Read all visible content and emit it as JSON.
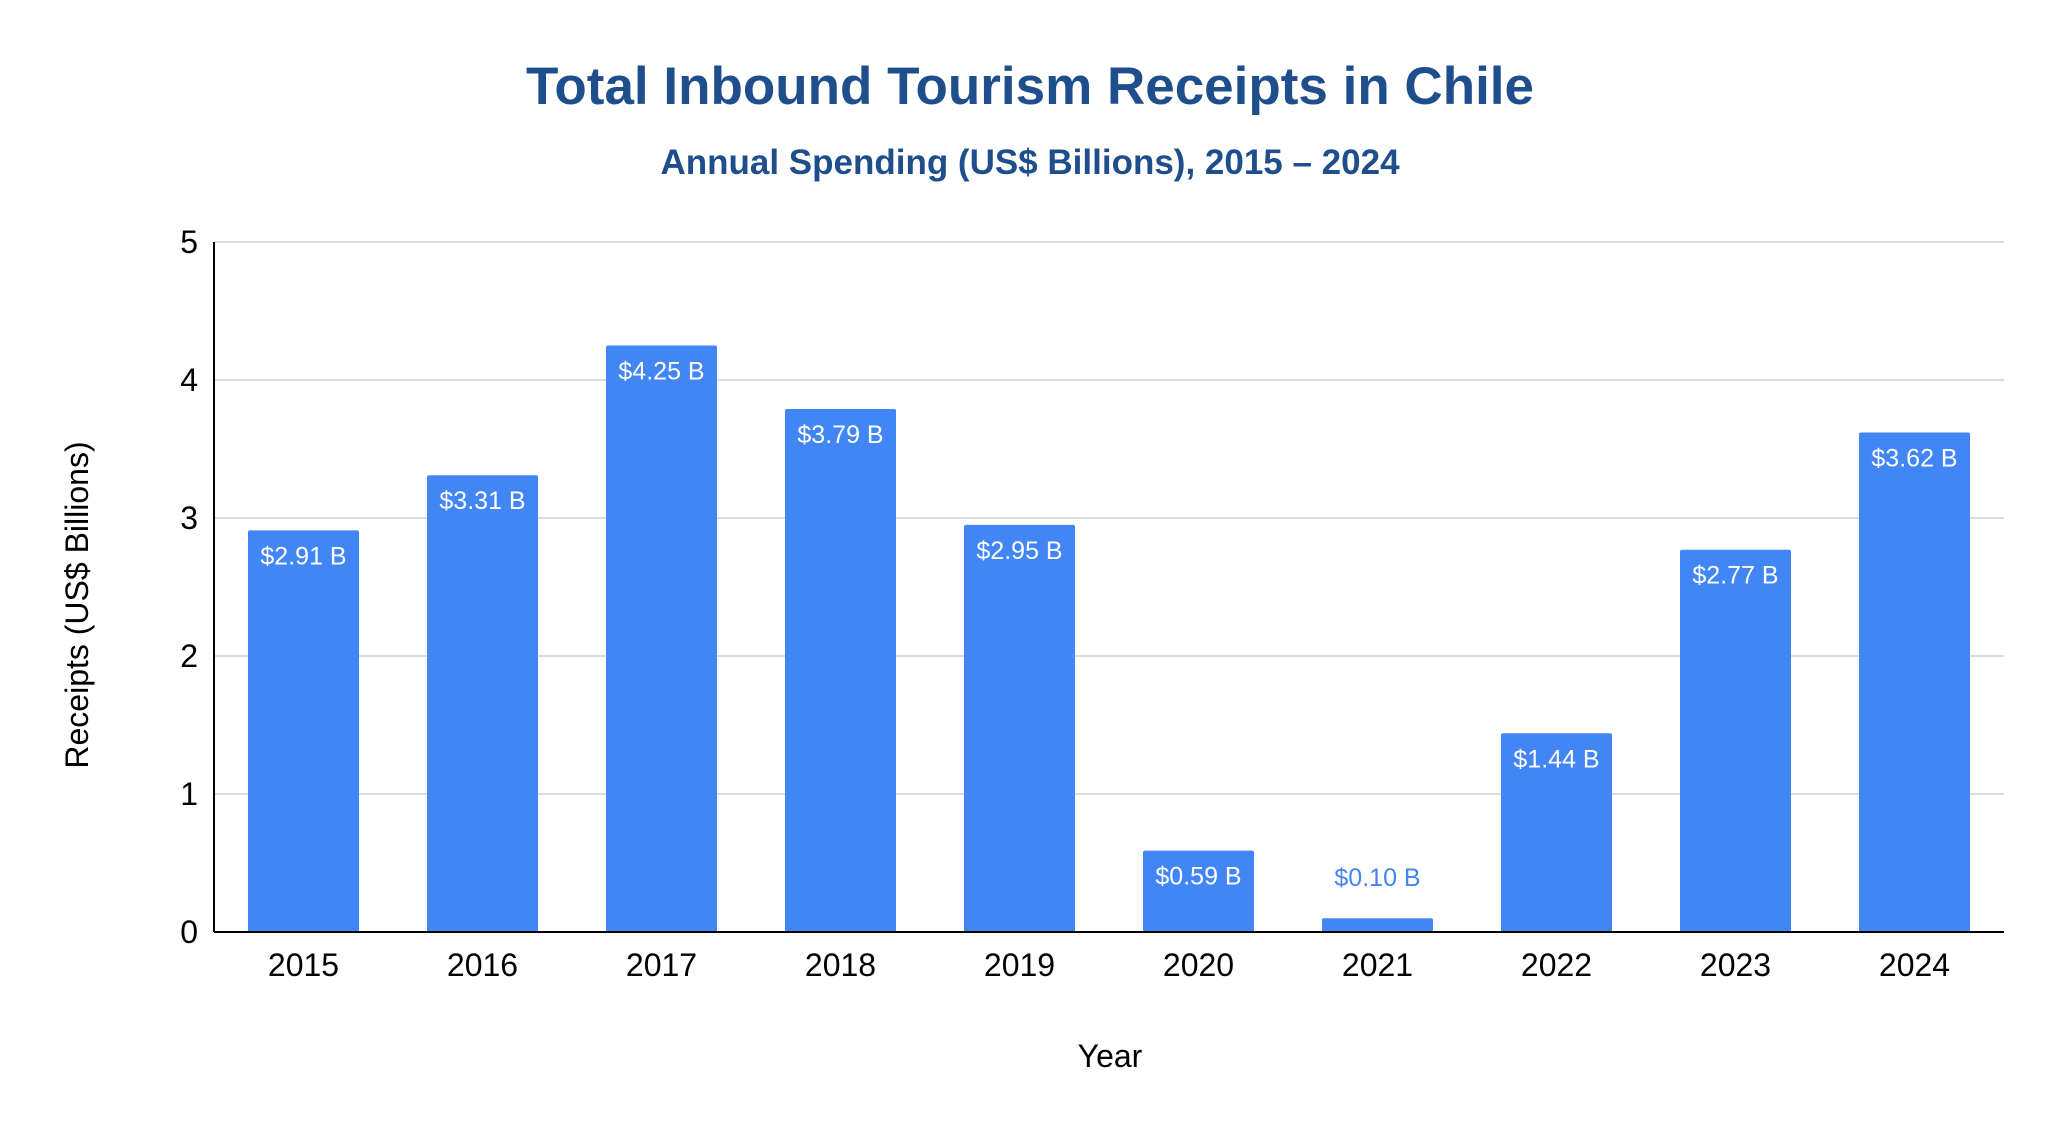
{
  "chart_data": {
    "type": "bar",
    "title": "Total Inbound Tourism Receipts in Chile",
    "subtitle": "Annual Spending (US$ Billions), 2015 – 2024",
    "xlabel": "Year",
    "ylabel": "Receipts (US$ Billions)",
    "categories": [
      "2015",
      "2016",
      "2017",
      "2018",
      "2019",
      "2020",
      "2021",
      "2022",
      "2023",
      "2024"
    ],
    "values": [
      2.91,
      3.31,
      4.25,
      3.79,
      2.95,
      0.59,
      0.1,
      1.44,
      2.77,
      3.62
    ],
    "data_labels": [
      "$2.91 B",
      "$3.31 B",
      "$4.25 B",
      "$3.79 B",
      "$2.95 B",
      "$0.59 B",
      "$0.10 B",
      "$1.44 B",
      "$2.77 B",
      "$3.62 B"
    ],
    "ylim": [
      0,
      5
    ],
    "yticks": [
      "0",
      "1",
      "2",
      "3",
      "4",
      "5"
    ],
    "grid": true,
    "legend": "none",
    "colors": {
      "bar": "#4285F4",
      "title": "#1F4E8C",
      "label_inside": "#FFFFFF",
      "label_outside": "#4285F4",
      "grid": "#D0D0D0",
      "axis": "#000000",
      "text": "#000000"
    }
  }
}
